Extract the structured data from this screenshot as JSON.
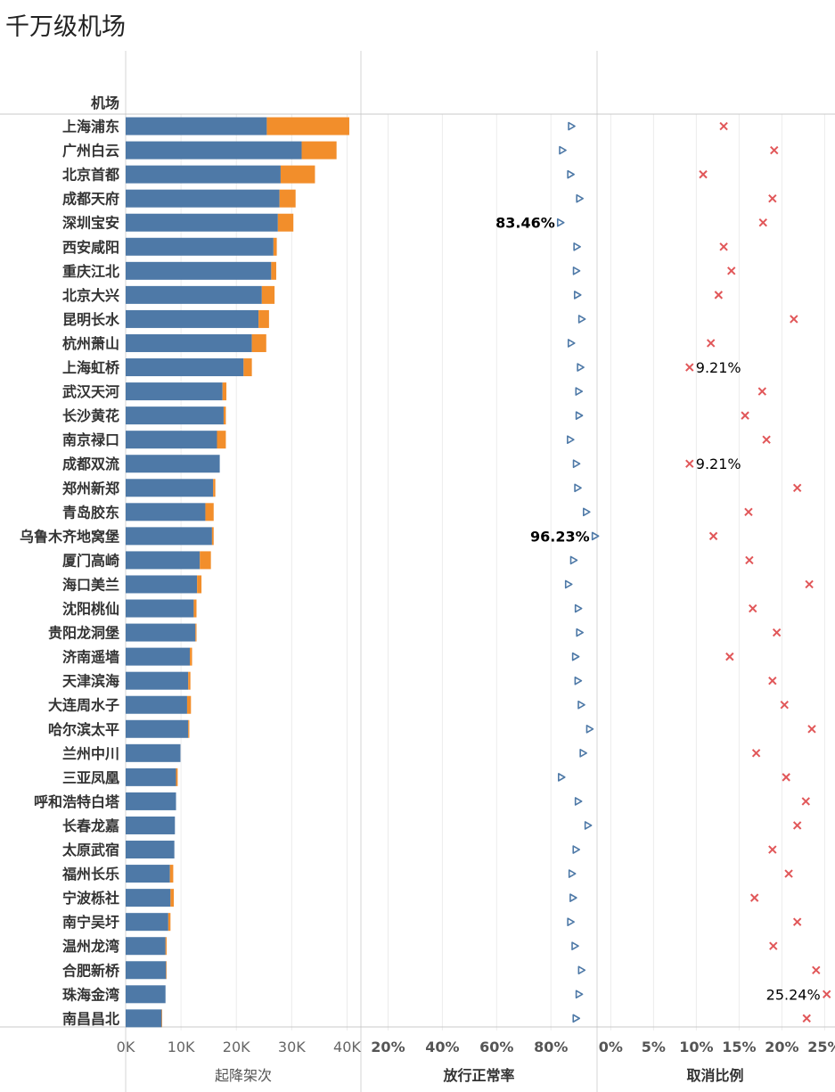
{
  "title": "千万级机场",
  "chart_data": {
    "type": "bar",
    "row_header": "机场",
    "categories": [
      "上海浦东",
      "广州白云",
      "北京首都",
      "成都天府",
      "深圳宝安",
      "西安咸阳",
      "重庆江北",
      "北京大兴",
      "昆明长水",
      "杭州萧山",
      "上海虹桥",
      "武汉天河",
      "长沙黄花",
      "南京禄口",
      "成都双流",
      "郑州新郑",
      "青岛胶东",
      "乌鲁木齐地窝堡",
      "厦门高崎",
      "海口美兰",
      "沈阳桃仙",
      "贵阳龙洞堡",
      "济南遥墙",
      "天津滨海",
      "大连周水子",
      "哈尔滨太平",
      "兰州中川",
      "三亚凤凰",
      "呼和浩特白塔",
      "长春龙嘉",
      "太原武宿",
      "福州长乐",
      "宁波栎社",
      "南宁吴圩",
      "温州龙湾",
      "合肥新桥",
      "珠海金湾",
      "南昌昌北"
    ],
    "panels": [
      {
        "name": "起降架次",
        "type": "stacked-bar",
        "xlim": [
          0,
          42500
        ],
        "ticks": [
          0,
          10000,
          20000,
          30000,
          40000
        ],
        "tick_labels": [
          "0K",
          "10K",
          "20K",
          "30K",
          "40K"
        ],
        "series": [
          {
            "color": "#4e79a7",
            "values": [
              25500,
              31800,
              28000,
              27800,
              27500,
              26700,
              26300,
              24600,
              24000,
              22800,
              21300,
              17500,
              17700,
              16500,
              17000,
              15800,
              14400,
              15600,
              13400,
              12900,
              12300,
              12600,
              11600,
              11300,
              11100,
              11300,
              9900,
              9100,
              9100,
              8900,
              8800,
              8000,
              8100,
              7700,
              7200,
              7300,
              7200,
              6500
            ]
          },
          {
            "color": "#f28e2b",
            "values": [
              14900,
              6300,
              6200,
              2900,
              2800,
              600,
              900,
              2300,
              1900,
              2600,
              1500,
              700,
              400,
              1600,
              0,
              400,
              1500,
              300,
              2000,
              800,
              500,
              200,
              400,
              400,
              700,
              200,
              0,
              300,
              0,
              0,
              0,
              600,
              600,
              400,
              200,
              100,
              0,
              100
            ]
          }
        ]
      },
      {
        "name": "放行正常率",
        "type": "scatter",
        "marker": "triangle-right",
        "color": "#4e79a7",
        "xlim": [
          10,
          97
        ],
        "ticks": [
          20,
          40,
          60,
          80
        ],
        "tick_labels": [
          "20%",
          "40%",
          "60%",
          "80%"
        ],
        "values": [
          87.5,
          84.2,
          87.2,
          90.5,
          83.46,
          89.5,
          89.3,
          89.7,
          91.3,
          87.4,
          90.8,
          90.2,
          90.3,
          87.1,
          89.3,
          89.8,
          93.0,
          96.23,
          88.3,
          86.4,
          90.0,
          90.5,
          89.0,
          89.9,
          91.1,
          94.2,
          91.8,
          83.8,
          90.0,
          93.6,
          89.2,
          87.7,
          88.1,
          87.2,
          88.8,
          91.2,
          90.3,
          89.2
        ],
        "labels": [
          {
            "index": 4,
            "text": "83.46%"
          },
          {
            "index": 17,
            "text": "96.23%"
          }
        ]
      },
      {
        "name": "取消比例",
        "type": "scatter",
        "marker": "x",
        "color": "#e15759",
        "xlim": [
          -1.6,
          26
        ],
        "ticks": [
          0,
          5,
          10,
          15,
          20,
          25
        ],
        "tick_labels": [
          "0%",
          "5%",
          "10%",
          "15%",
          "20%",
          "25%"
        ],
        "values": [
          13.2,
          19.1,
          10.8,
          18.9,
          17.8,
          13.2,
          14.1,
          12.6,
          21.4,
          11.7,
          9.21,
          17.7,
          15.7,
          18.2,
          9.21,
          21.8,
          16.1,
          12.0,
          16.2,
          23.2,
          16.6,
          19.4,
          13.9,
          18.9,
          20.3,
          23.5,
          17.0,
          20.5,
          22.8,
          21.8,
          18.9,
          20.8,
          16.8,
          21.8,
          19.0,
          24.0,
          25.24,
          22.9
        ],
        "labels": [
          {
            "index": 10,
            "text": "9.21%"
          },
          {
            "index": 14,
            "text": "9.21%"
          },
          {
            "index": 36,
            "text": "25.24%"
          }
        ]
      }
    ]
  }
}
